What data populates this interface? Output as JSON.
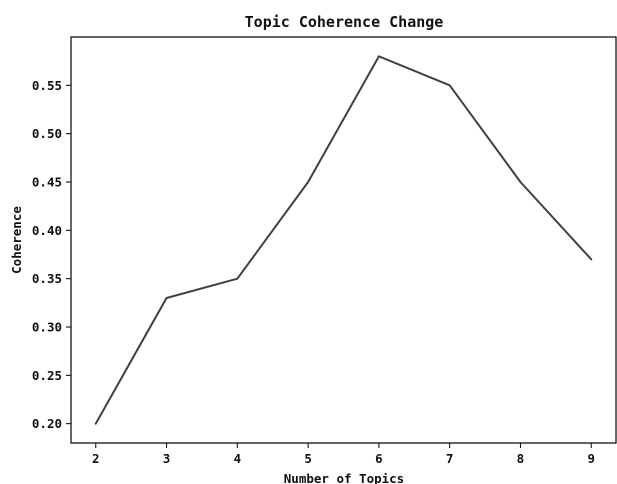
{
  "chart_data": {
    "type": "line",
    "title": "Topic Coherence Change",
    "xlabel": "Number of Topics",
    "ylabel": "Coherence",
    "x": [
      2,
      3,
      4,
      5,
      6,
      7,
      8,
      9
    ],
    "series": [
      {
        "values": [
          0.2,
          0.33,
          0.35,
          0.45,
          0.58,
          0.55,
          0.45,
          0.37
        ]
      }
    ],
    "xlim": [
      1.65,
      9.35
    ],
    "ylim": [
      0.18,
      0.6
    ],
    "x_ticks": [
      "2",
      "3",
      "4",
      "5",
      "6",
      "7",
      "8",
      "9"
    ],
    "y_ticks": [
      "0.20",
      "0.25",
      "0.30",
      "0.35",
      "0.40",
      "0.45",
      "0.50",
      "0.55"
    ],
    "grid": false,
    "line_color": "#404040"
  }
}
